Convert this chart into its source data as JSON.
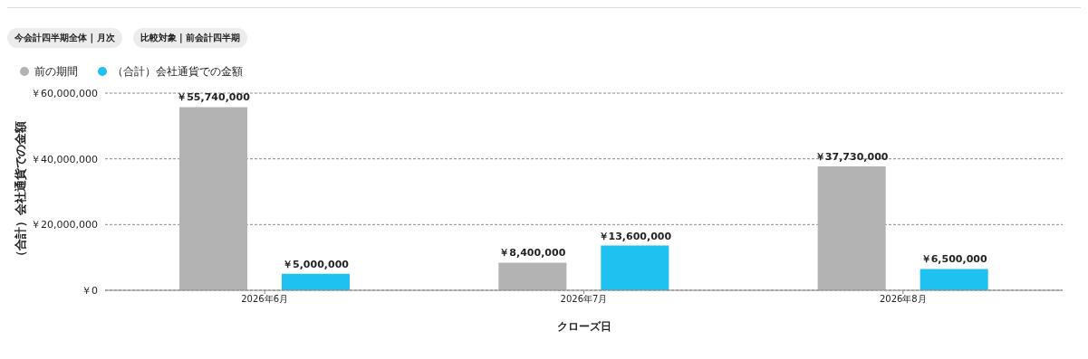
{
  "chart_data": {
    "type": "bar",
    "xlabel": "クローズ日",
    "ylabel": "（合計）会社通貨での金額",
    "annotations": [
      "今会計四半期全体 | 月次",
      "比較対象 | 前会計四半期"
    ],
    "categories": [
      "2026年6月",
      "2026年7月",
      "2026年8月"
    ],
    "series": [
      {
        "name": "前の期間",
        "color": "#b3b3b3",
        "values": [
          55740000,
          8400000,
          37730000
        ],
        "value_labels": [
          "￥55,740,000",
          "￥8,400,000",
          "￥37,730,000"
        ]
      },
      {
        "name": "（合計）会社通貨での金額",
        "color": "#1fc1f0",
        "values": [
          5000000,
          13600000,
          6500000
        ],
        "value_labels": [
          "￥5,000,000",
          "￥13,600,000",
          "￥6,500,000"
        ]
      }
    ],
    "ylim": [
      0,
      60000000
    ],
    "yticks": [
      {
        "value": 0,
        "label": "￥0"
      },
      {
        "value": 20000000,
        "label": "￥20,000,000"
      },
      {
        "value": 40000000,
        "label": "￥40,000,000"
      },
      {
        "value": 60000000,
        "label": "￥60,000,000"
      }
    ],
    "grid": "y",
    "legend": "top left"
  }
}
